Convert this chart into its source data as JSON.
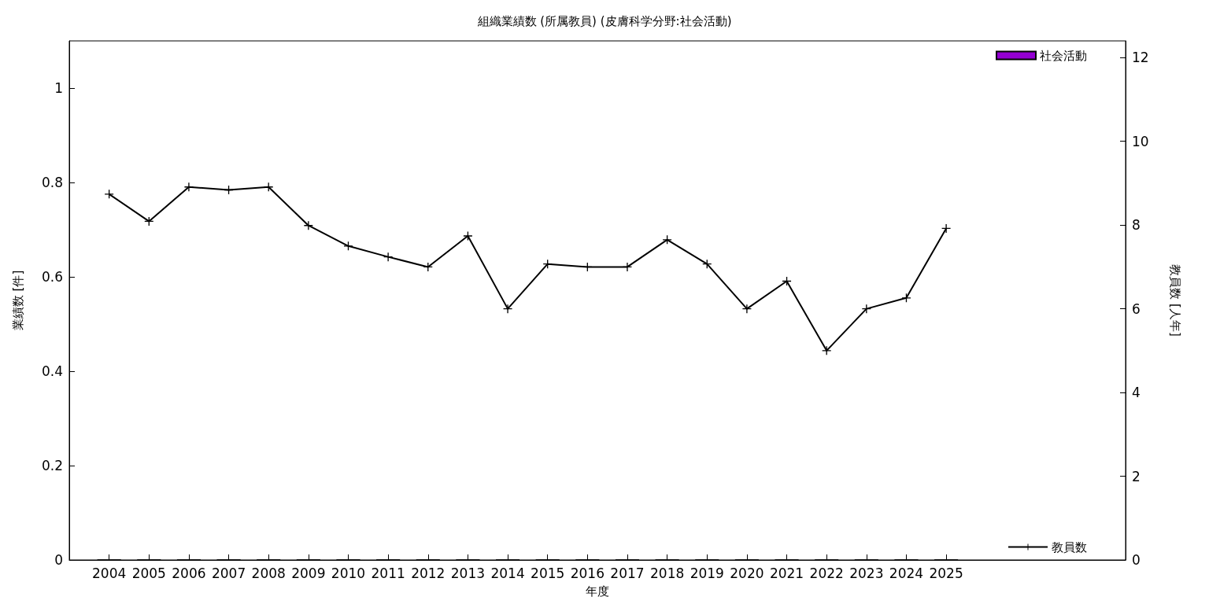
{
  "chart_data": {
    "type": "bar",
    "title": "組織業績数 (所属教員) (皮膚科学分野:社会活動)",
    "xlabel": "年度",
    "ylabel": "業績数 [件]",
    "y2label": "教員数 [人年]",
    "x": [
      2004,
      2005,
      2006,
      2007,
      2008,
      2009,
      2010,
      2011,
      2012,
      2013,
      2014,
      2015,
      2016,
      2017,
      2018,
      2019,
      2020,
      2021,
      2022,
      2023,
      2024,
      2025
    ],
    "xlim": [
      2003,
      2029.5
    ],
    "xticks": [
      2004,
      2005,
      2006,
      2007,
      2008,
      2009,
      2010,
      2011,
      2012,
      2013,
      2014,
      2015,
      2016,
      2017,
      2018,
      2019,
      2020,
      2021,
      2022,
      2023,
      2024,
      2025
    ],
    "ylim": [
      0,
      1.1
    ],
    "yticks": [
      0,
      0.2,
      0.4,
      0.6,
      0.8,
      1
    ],
    "y2lim": [
      0,
      12.4
    ],
    "y2ticks": [
      0,
      2,
      4,
      6,
      8,
      10,
      12
    ],
    "legend": "right",
    "marker": "cross",
    "series": [
      {
        "name": "社会活動",
        "color": "#9400d3",
        "values": [
          0,
          0,
          0,
          0,
          0,
          0,
          0,
          0,
          0,
          0,
          0,
          0,
          0,
          0,
          0,
          0,
          0,
          0,
          0,
          0,
          0,
          0
        ]
      },
      {
        "name": "教員数",
        "type": "line",
        "axis": "y2",
        "color": "#000000",
        "values": [
          8.74,
          8.09,
          8.91,
          8.84,
          8.91,
          7.99,
          7.5,
          7.24,
          7.0,
          7.74,
          6.0,
          7.07,
          7.0,
          7.0,
          7.65,
          7.07,
          6.0,
          6.66,
          5.0,
          6.0,
          6.26,
          7.92
        ]
      }
    ]
  }
}
